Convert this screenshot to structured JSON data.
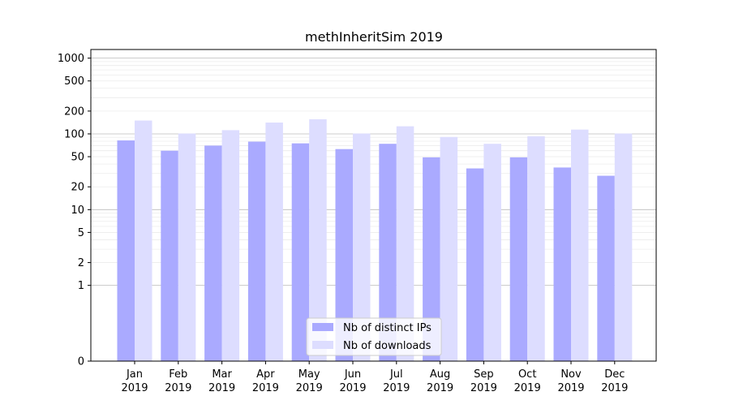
{
  "chart_data": {
    "type": "bar",
    "title": "methInheritSim 2019",
    "xlabel": "",
    "ylabel": "",
    "yscale": "symlog",
    "ylim": [
      0,
      1300
    ],
    "grid": true,
    "legend_position": "bottom-center",
    "categories": [
      {
        "month": "Jan",
        "year": "2019"
      },
      {
        "month": "Feb",
        "year": "2019"
      },
      {
        "month": "Mar",
        "year": "2019"
      },
      {
        "month": "Apr",
        "year": "2019"
      },
      {
        "month": "May",
        "year": "2019"
      },
      {
        "month": "Jun",
        "year": "2019"
      },
      {
        "month": "Jul",
        "year": "2019"
      },
      {
        "month": "Aug",
        "year": "2019"
      },
      {
        "month": "Sep",
        "year": "2019"
      },
      {
        "month": "Oct",
        "year": "2019"
      },
      {
        "month": "Nov",
        "year": "2019"
      },
      {
        "month": "Dec",
        "year": "2019"
      }
    ],
    "series": [
      {
        "name": "Nb of distinct IPs",
        "color": "#aaaaff",
        "values": [
          82,
          60,
          70,
          79,
          75,
          63,
          74,
          49,
          35,
          49,
          36,
          28
        ]
      },
      {
        "name": "Nb of downloads",
        "color": "#ddddff",
        "values": [
          150,
          101,
          112,
          141,
          156,
          101,
          126,
          91,
          74,
          93,
          114,
          101
        ]
      }
    ],
    "y_ticks": [
      "0",
      "1",
      "2",
      "5",
      "10",
      "20",
      "50",
      "100",
      "200",
      "500",
      "1000"
    ],
    "y_tick_values": [
      0,
      1,
      2,
      5,
      10,
      20,
      50,
      100,
      200,
      500,
      1000
    ]
  }
}
